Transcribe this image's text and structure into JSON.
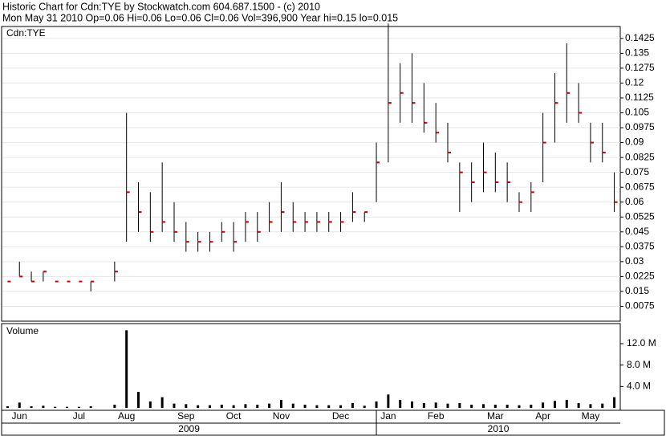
{
  "header": {
    "line1": "Historic Chart for Cdn:TYE by Stockwatch.com 604.687.1500 - (c) 2010",
    "line2": "Mon May 31 2010   Op=0.06   Hi=0.06   Lo=0.06   Cl=0.06   Vol=396,900   Year hi=0.15   lo=0.015"
  },
  "chart_data": [
    {
      "type": "ohlc",
      "label": "Cdn:TYE",
      "color": "#000000",
      "close_color": "#cc0000",
      "grid": true,
      "ylim": [
        0,
        0.1485
      ],
      "yticks": [
        0.0075,
        0.015,
        0.0225,
        0.03,
        0.0375,
        0.045,
        0.0525,
        0.06,
        0.0675,
        0.075,
        0.0825,
        0.09,
        0.0975,
        0.105,
        0.1125,
        0.12,
        0.1275,
        0.135,
        0.1425
      ],
      "high": [
        0.02,
        0.03,
        0.025,
        0.025,
        0.02,
        0.02,
        0.02,
        0.02,
        null,
        0.03,
        0.105,
        0.07,
        0.065,
        0.08,
        0.06,
        0.05,
        0.045,
        0.045,
        0.05,
        0.05,
        0.055,
        0.055,
        0.06,
        0.07,
        0.06,
        0.055,
        0.055,
        0.055,
        0.055,
        0.065,
        0.055,
        0.09,
        0.15,
        0.13,
        0.135,
        0.12,
        0.11,
        0.1,
        0.08,
        0.08,
        0.09,
        0.085,
        0.08,
        0.065,
        0.07,
        0.105,
        0.125,
        0.14,
        0.12,
        0.1,
        0.1,
        0.075
      ],
      "low": [
        0.02,
        0.0225,
        0.02,
        0.02,
        0.02,
        0.02,
        0.02,
        0.015,
        null,
        0.02,
        0.04,
        0.045,
        0.04,
        0.045,
        0.04,
        0.035,
        0.035,
        0.035,
        0.04,
        0.035,
        0.04,
        0.04,
        0.045,
        0.045,
        0.045,
        0.045,
        0.045,
        0.045,
        0.045,
        0.05,
        0.05,
        0.06,
        0.08,
        0.1,
        0.1,
        0.095,
        0.09,
        0.08,
        0.055,
        0.06,
        0.065,
        0.065,
        0.06,
        0.055,
        0.055,
        0.07,
        0.09,
        0.1,
        0.1,
        0.08,
        0.08,
        0.055
      ],
      "close": [
        0.02,
        0.0225,
        0.02,
        0.025,
        0.02,
        0.02,
        0.02,
        0.02,
        null,
        0.025,
        0.065,
        0.055,
        0.045,
        0.05,
        0.045,
        0.04,
        0.04,
        0.04,
        0.045,
        0.04,
        0.05,
        0.045,
        0.05,
        0.055,
        0.05,
        0.05,
        0.05,
        0.05,
        0.05,
        0.055,
        0.055,
        0.08,
        0.11,
        0.115,
        0.11,
        0.1,
        0.095,
        0.085,
        0.075,
        0.07,
        0.075,
        0.07,
        0.07,
        0.06,
        0.065,
        0.09,
        0.11,
        0.115,
        0.105,
        0.09,
        0.085,
        0.06
      ]
    },
    {
      "type": "bar",
      "label": "Volume",
      "color": "#000000",
      "ylim": [
        0,
        15.75
      ],
      "yticks": [
        {
          "value": 4,
          "label": "4.0 M"
        },
        {
          "value": 8,
          "label": "8.0 M"
        },
        {
          "value": 12,
          "label": "12.0 M"
        }
      ],
      "categories": [
        null,
        "Jun",
        null,
        null,
        null,
        null,
        "Jul",
        null,
        null,
        null,
        "Aug",
        null,
        null,
        null,
        null,
        "Sep",
        null,
        null,
        null,
        "Oct",
        null,
        null,
        null,
        "Nov",
        null,
        null,
        null,
        null,
        "Dec",
        null,
        null,
        null,
        "Jan",
        null,
        null,
        null,
        "Feb",
        null,
        null,
        null,
        null,
        "Mar",
        null,
        null,
        null,
        "Apr",
        null,
        null,
        null,
        "May",
        null,
        null
      ],
      "values": [
        0.3,
        1.0,
        0.3,
        0.4,
        0.2,
        0.2,
        0.2,
        0.3,
        null,
        0.6,
        14.5,
        3.0,
        1.2,
        2.0,
        0.8,
        0.7,
        0.5,
        0.5,
        0.6,
        0.5,
        0.7,
        0.6,
        0.8,
        1.5,
        0.8,
        0.6,
        0.5,
        0.5,
        0.5,
        0.9,
        0.4,
        1.2,
        2.5,
        1.5,
        1.2,
        0.9,
        1.0,
        0.8,
        0.9,
        0.6,
        0.7,
        0.6,
        0.6,
        0.5,
        0.6,
        1.0,
        1.3,
        1.5,
        0.9,
        0.7,
        0.8,
        2.0
      ],
      "year_labels": [
        "2009",
        "2010"
      ]
    }
  ]
}
